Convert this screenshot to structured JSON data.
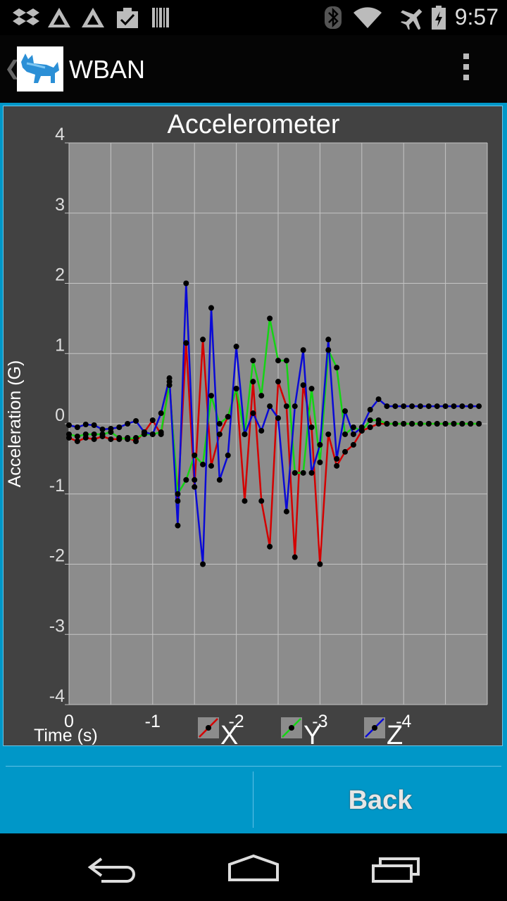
{
  "status_bar": {
    "time": "9:57",
    "icons": [
      "dropbox-icon",
      "app-triangle-icon",
      "app-triangle-icon",
      "clipboard-check-icon",
      "barcode-icon",
      "bluetooth-icon",
      "wifi-icon",
      "airplane-icon",
      "battery-charging-icon"
    ]
  },
  "action_bar": {
    "title": "WBAN"
  },
  "bottom_bar": {
    "left_label": "",
    "back_label": "Back"
  },
  "nav_bar": {
    "icons": [
      "back-icon",
      "home-icon",
      "recents-icon"
    ]
  },
  "colors": {
    "content_bg": "#0097c8",
    "chart_bg": "#424242",
    "plot_bg": "#8c8c8c",
    "x": "#d40000",
    "y": "#14d414",
    "z": "#0a0ad6"
  },
  "chart_data": {
    "type": "line",
    "title": "Accelerometer",
    "xlabel": "Time (s)",
    "ylabel": "Acceleration (G)",
    "xlim": [
      0,
      -5
    ],
    "ylim": [
      -4,
      4
    ],
    "xticks": [
      0,
      -1,
      -2,
      -3,
      -4
    ],
    "xtick_labels": [
      "0",
      "-1",
      "-2",
      "-3",
      "-4"
    ],
    "yticks": [
      4,
      3,
      2,
      1,
      0,
      -1,
      -2,
      -3,
      -4
    ],
    "ytick_labels": [
      "4",
      "3",
      "2",
      "1",
      "0",
      "-1",
      "-2",
      "-3",
      "-4"
    ],
    "grid": true,
    "legend_position": "bottom",
    "x": [
      0,
      -0.1,
      -0.2,
      -0.3,
      -0.4,
      -0.5,
      -0.6,
      -0.7,
      -0.8,
      -0.9,
      -1.0,
      -1.1,
      -1.2,
      -1.3,
      -1.4,
      -1.5,
      -1.6,
      -1.7,
      -1.8,
      -1.9,
      -2.0,
      -2.1,
      -2.2,
      -2.3,
      -2.4,
      -2.5,
      -2.6,
      -2.7,
      -2.8,
      -2.9,
      -3.0,
      -3.1,
      -3.2,
      -3.3,
      -3.4,
      -3.5,
      -3.6,
      -3.7,
      -3.8,
      -3.9,
      -4.0,
      -4.1,
      -4.2,
      -4.3,
      -4.4,
      -4.5,
      -4.6,
      -4.7,
      -4.8,
      -4.9
    ],
    "series": [
      {
        "name": "X",
        "color": "#d40000",
        "values": [
          -0.2,
          -0.25,
          -0.2,
          -0.22,
          -0.18,
          -0.22,
          -0.22,
          -0.2,
          -0.25,
          -0.12,
          0.05,
          -0.15,
          0.6,
          -1.1,
          1.15,
          -0.9,
          1.2,
          -0.6,
          -0.15,
          0.1,
          0.5,
          -1.1,
          0.6,
          -1.1,
          -1.75,
          0.6,
          0.25,
          -1.9,
          0.55,
          -0.05,
          -2.0,
          -0.15,
          -0.6,
          -0.4,
          -0.3,
          -0.1,
          -0.05,
          0.0,
          0.0,
          0.0,
          0.0,
          0.0,
          0.0,
          0.0,
          0.0,
          0.0,
          0.0,
          0.0,
          0.0,
          0.0
        ]
      },
      {
        "name": "Y",
        "color": "#14d414",
        "values": [
          -0.15,
          -0.18,
          -0.15,
          -0.15,
          -0.15,
          -0.12,
          -0.2,
          -0.22,
          -0.2,
          -0.15,
          -0.15,
          -0.12,
          0.55,
          -1.0,
          -0.8,
          -0.45,
          -0.58,
          0.4,
          0.0,
          0.1,
          0.5,
          -0.15,
          0.9,
          0.4,
          1.5,
          0.9,
          0.9,
          -0.7,
          -0.7,
          0.5,
          -0.55,
          1.05,
          0.8,
          -0.15,
          -0.05,
          -0.1,
          0.05,
          0.05,
          0.0,
          0.0,
          0.0,
          0.0,
          0.0,
          0.0,
          0.0,
          0.0,
          0.0,
          0.0,
          0.0,
          0.0
        ]
      },
      {
        "name": "Z",
        "color": "#0a0ad6",
        "values": [
          -0.02,
          -0.05,
          -0.01,
          -0.02,
          -0.08,
          -0.07,
          -0.05,
          0.0,
          0.04,
          -0.12,
          -0.15,
          0.15,
          0.65,
          -1.45,
          2.0,
          -0.8,
          -2.0,
          1.65,
          -0.8,
          -0.45,
          1.1,
          -0.15,
          0.15,
          -0.1,
          0.25,
          0.08,
          -1.25,
          0.25,
          1.05,
          -0.7,
          -0.3,
          1.2,
          -0.5,
          0.18,
          -0.15,
          -0.05,
          0.2,
          0.35,
          0.25,
          0.25,
          0.25,
          0.25,
          0.25,
          0.25,
          0.25,
          0.25,
          0.25,
          0.25,
          0.25,
          0.25
        ]
      }
    ]
  }
}
